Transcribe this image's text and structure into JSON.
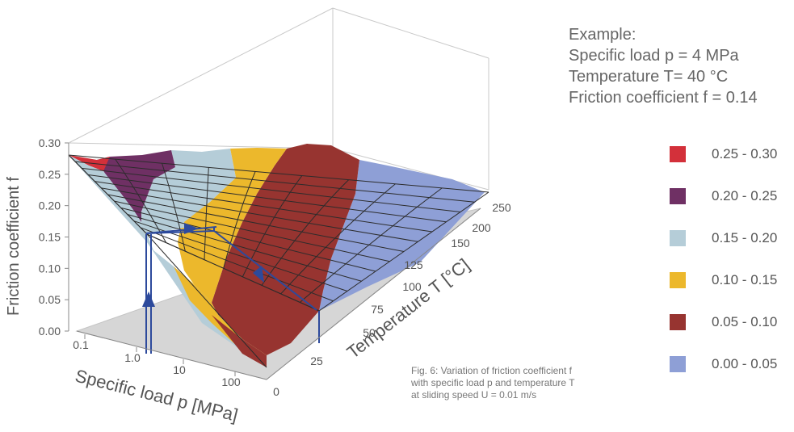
{
  "chart_data": {
    "type": "surface",
    "zlabel": "Friction coefficient f",
    "xlabel": "Specific load p [MPa]",
    "ylabel": "Temperature T [°C]",
    "z_ticks": [
      "0.00",
      "0.05",
      "0.10",
      "0.15",
      "0.20",
      "0.25",
      "0.30"
    ],
    "x_ticks": [
      "0.1",
      "1.0",
      "10",
      "100"
    ],
    "y_ticks": [
      "0",
      "25",
      "50",
      "75",
      "100",
      "125",
      "150",
      "200",
      "250"
    ],
    "zlim": [
      0,
      0.3
    ],
    "x_log": true,
    "example_point": {
      "p": 4,
      "T": 40,
      "f": 0.14
    },
    "colors": {
      "band_0": "#8e9fd6",
      "band_1": "#973430",
      "band_2": "#ecb82c",
      "band_3": "#b5cdd8",
      "band_4": "#6f3064",
      "band_5": "#d3303a",
      "floor": "#d6d6d6",
      "path": "#2d4a9c"
    }
  },
  "example": {
    "heading": "Example:",
    "line1": "Specific load p = 4 MPa",
    "line2": "Temperature T= 40 °C",
    "line3": "Friction coefficient f = 0.14"
  },
  "legend": [
    {
      "label": "0.25 - 0.30",
      "color": "#d3303a"
    },
    {
      "label": "0.20 - 0.25",
      "color": "#6f3064"
    },
    {
      "label": "0.15 - 0.20",
      "color": "#b5cdd8"
    },
    {
      "label": "0.10 - 0.15",
      "color": "#ecb82c"
    },
    {
      "label": "0.05 - 0.10",
      "color": "#973430"
    },
    {
      "label": "0.00 - 0.05",
      "color": "#8e9fd6"
    }
  ],
  "caption": {
    "line1": "Fig. 6: Variation of friction coefficient f",
    "line2": "with specific load p and temperature T",
    "line3": "at sliding speed U = 0.01 m/s"
  }
}
